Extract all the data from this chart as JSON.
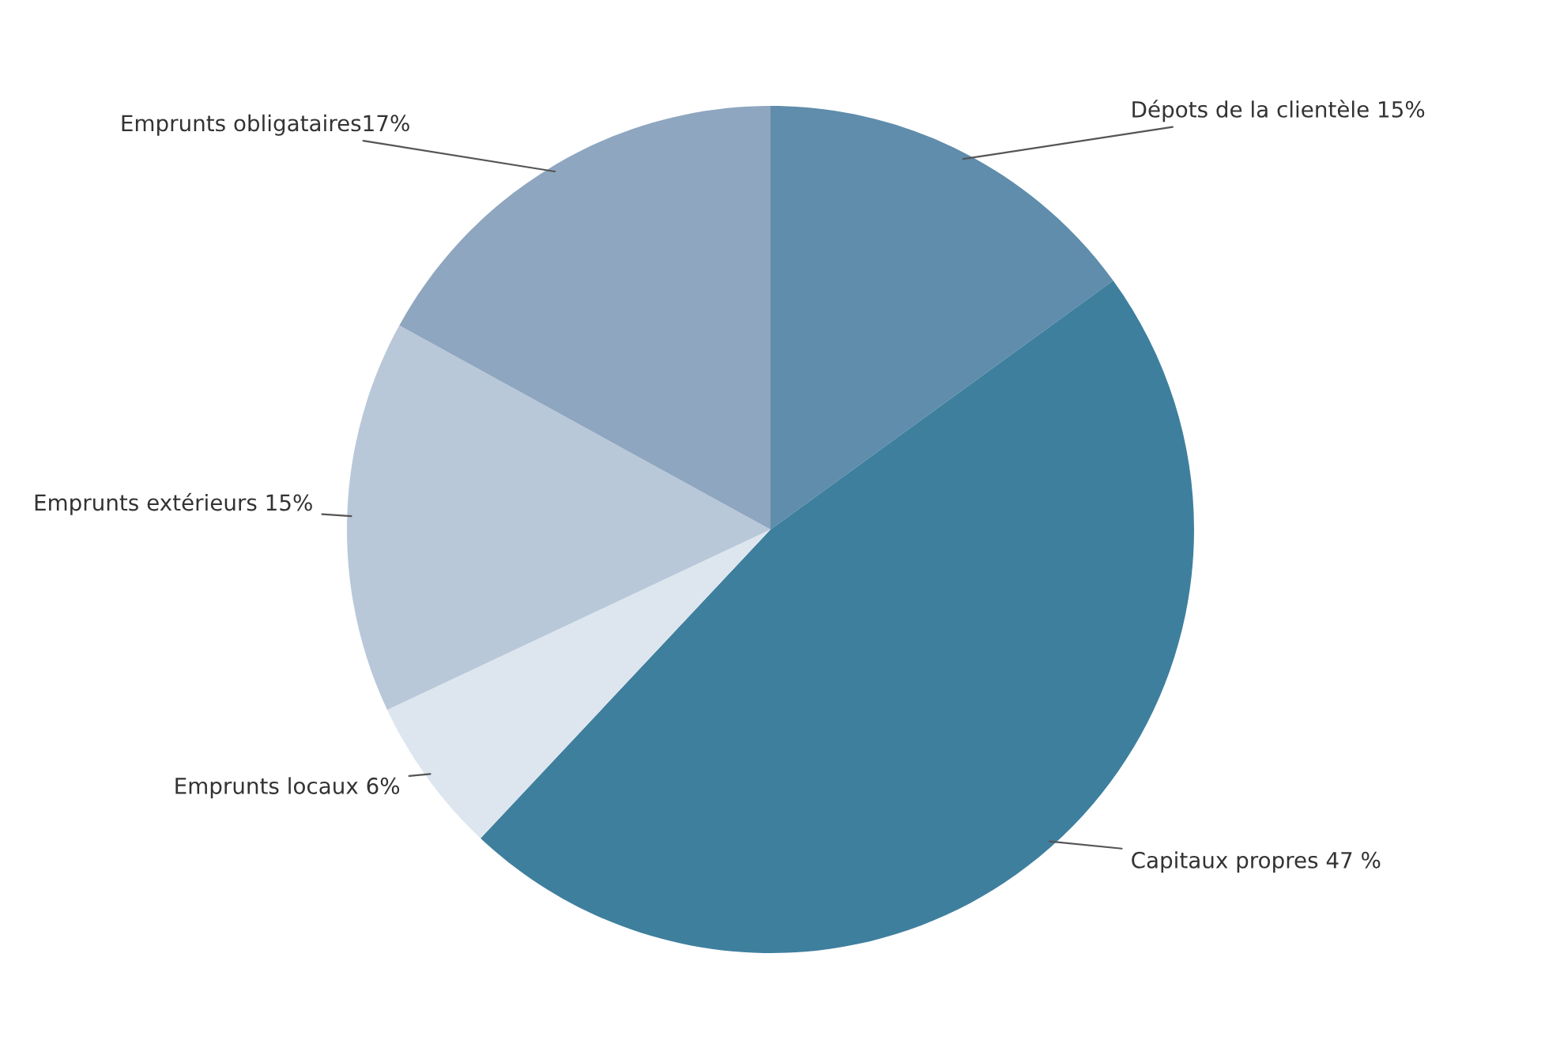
{
  "chart_data": {
    "type": "pie",
    "categories": [
      "Dépots de la clientèle 15%",
      "Capitaux propres 47 %",
      "Emprunts locaux 6%",
      "Emprunts extérieurs 15%",
      "Emprunts obligataires17%"
    ],
    "values": [
      15,
      47,
      6,
      15,
      17
    ],
    "colors": [
      "#5f8dab",
      "#3f7f9e",
      "#dde6ee",
      "#b8c8d9",
      "#8ea6bf"
    ]
  }
}
